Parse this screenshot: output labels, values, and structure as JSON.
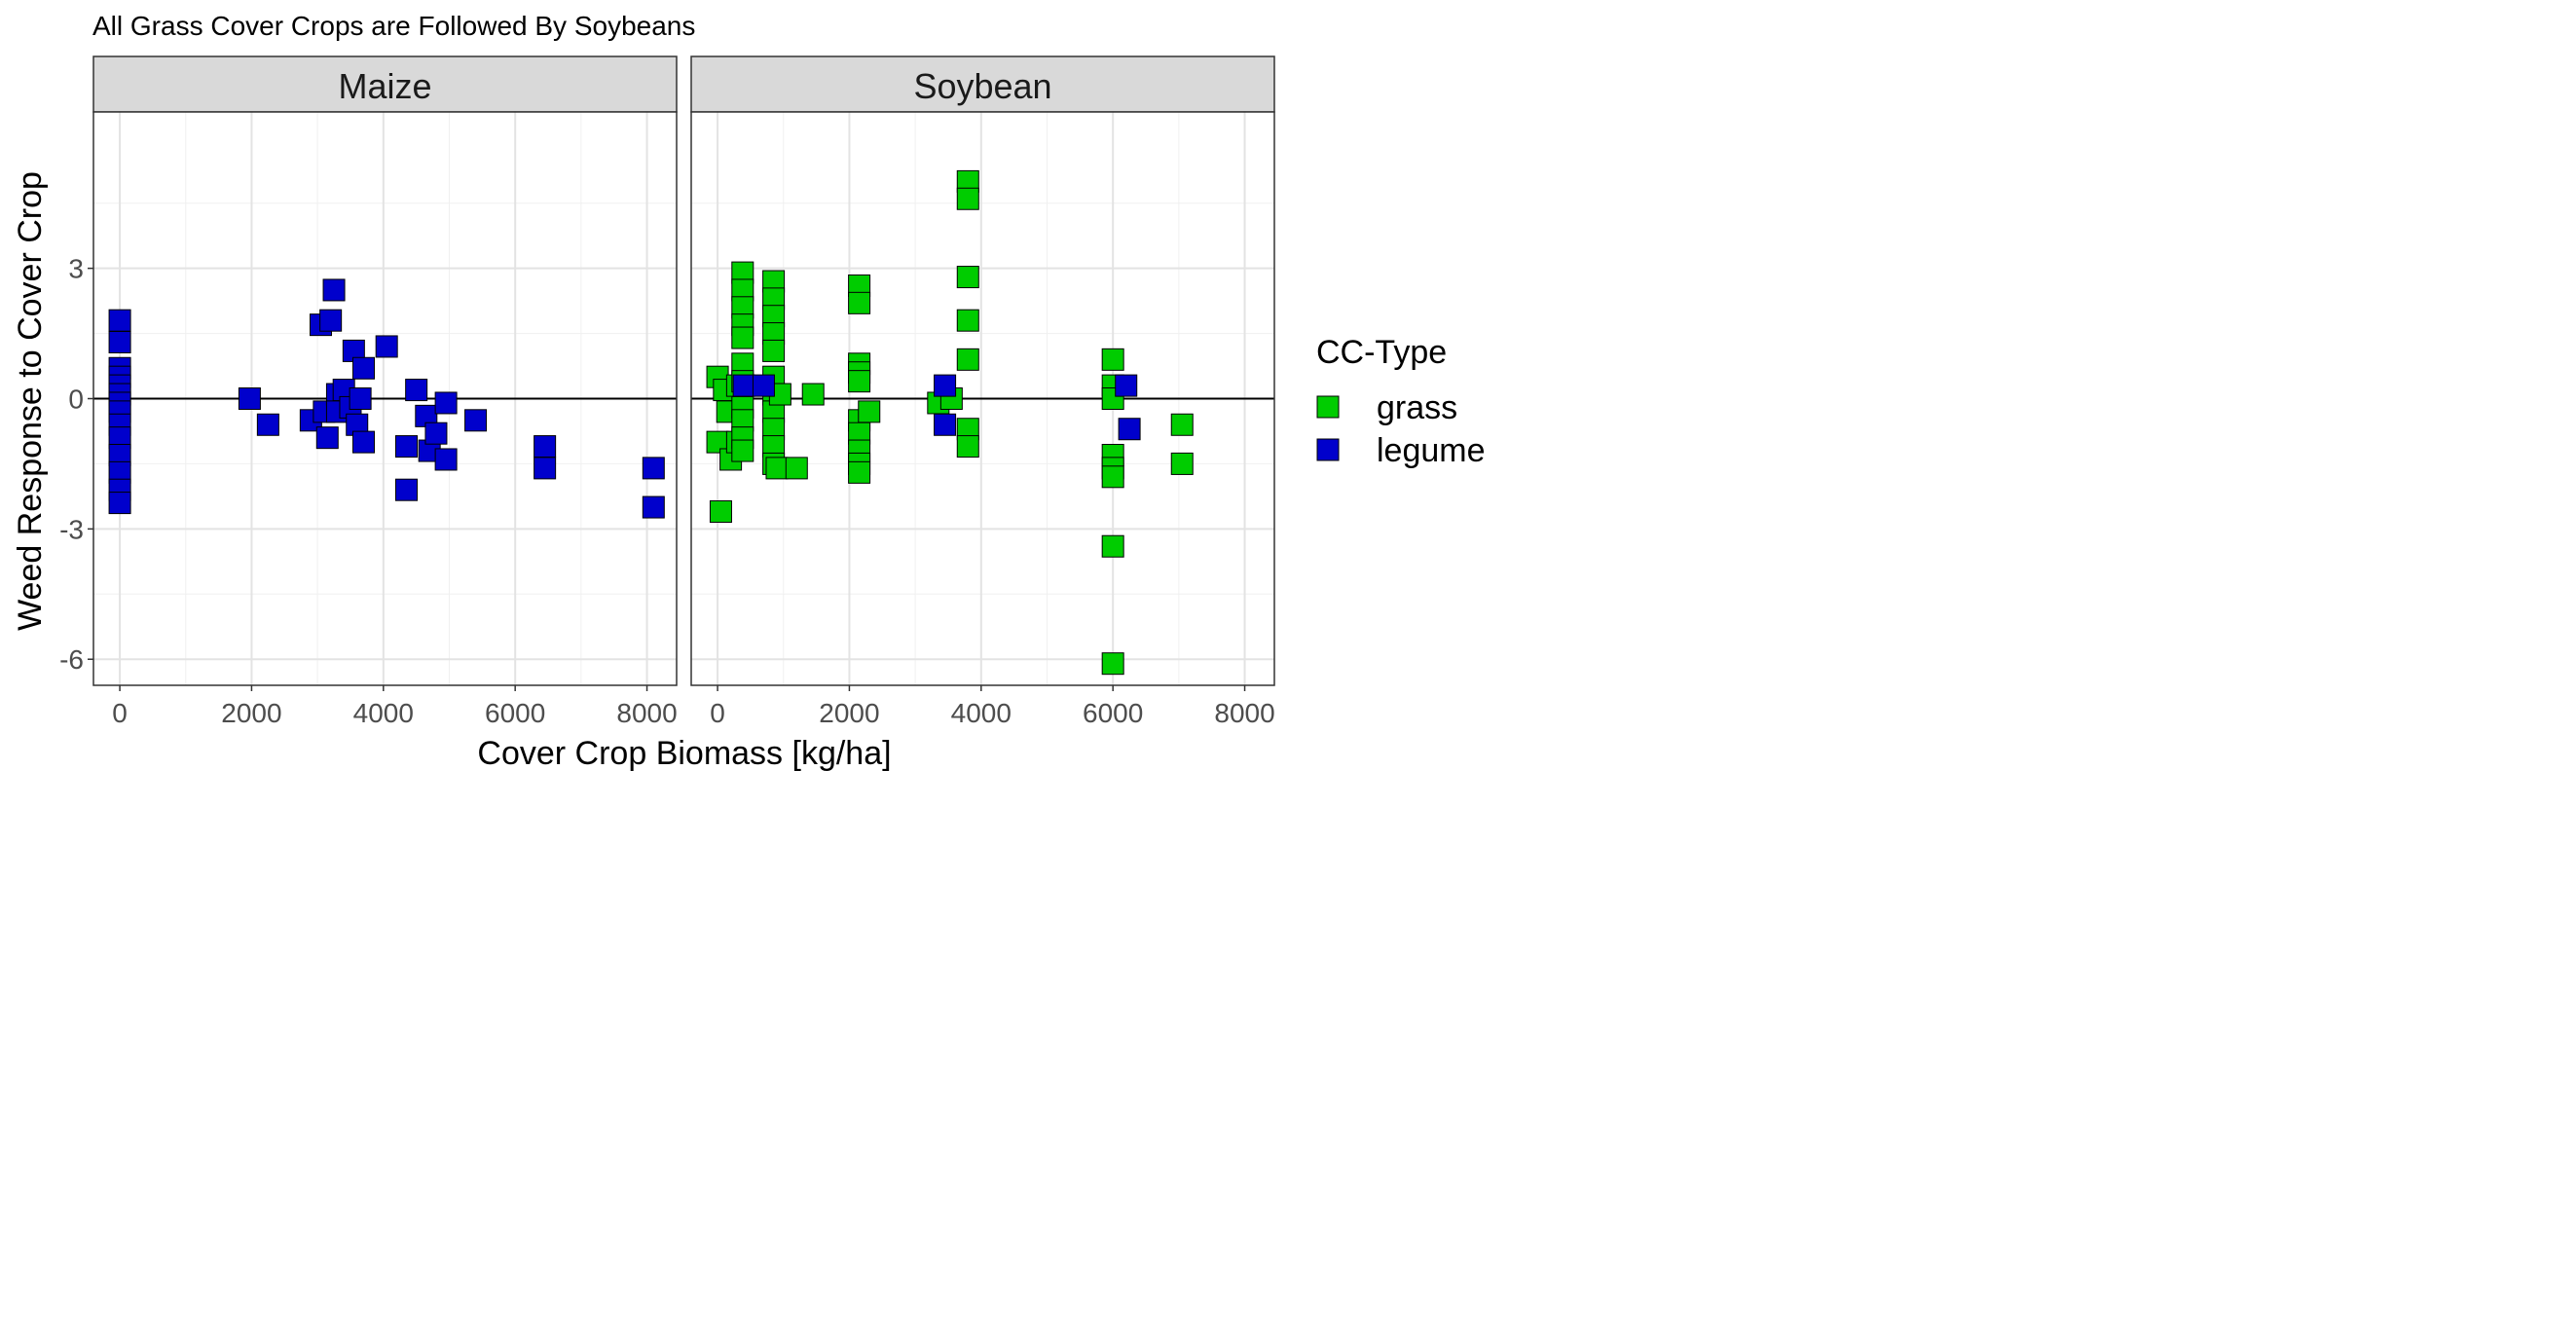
{
  "chart_data": {
    "type": "scatter",
    "title": "All Grass Cover Crops are Followed By Soybeans",
    "xlabel": "Cover Crop Biomass [kg/ha]",
    "ylabel": "Weed Response to Cover Crop",
    "xlim": [
      -400,
      8450
    ],
    "ylim": [
      -6.6,
      6.6
    ],
    "x_ticks": [
      0,
      2000,
      4000,
      6000,
      8000
    ],
    "y_ticks": [
      -6,
      -3,
      0,
      3
    ],
    "x_tick_labels": [
      "0",
      "2000",
      "4000",
      "6000",
      "8000"
    ],
    "y_tick_labels": [
      "-6",
      "-3",
      "0",
      "3"
    ],
    "grid": true,
    "reference_line_y": 0,
    "legend": {
      "title": "CC-Type",
      "position": "right",
      "items": [
        {
          "label": "grass",
          "color": "#00cc00"
        },
        {
          "label": "legume",
          "color": "#0000cc"
        }
      ]
    },
    "panels": [
      {
        "name": "Maize",
        "series": [
          {
            "name": "legume",
            "color": "#0000cc",
            "points": [
              [
                0,
                1.8
              ],
              [
                0,
                1.3
              ],
              [
                0,
                0.7
              ],
              [
                0,
                0.5
              ],
              [
                0,
                0.3
              ],
              [
                0,
                0.1
              ],
              [
                0,
                -0.1
              ],
              [
                0,
                -0.3
              ],
              [
                0,
                -0.6
              ],
              [
                0,
                -0.9
              ],
              [
                0,
                -1.3
              ],
              [
                0,
                -1.7
              ],
              [
                0,
                -2.1
              ],
              [
                0,
                -2.4
              ],
              [
                1970,
                0.0
              ],
              [
                2250,
                -0.6
              ],
              [
                2900,
                -0.5
              ],
              [
                3050,
                1.7
              ],
              [
                3100,
                -0.3
              ],
              [
                3150,
                -0.9
              ],
              [
                3200,
                1.8
              ],
              [
                3250,
                2.5
              ],
              [
                3300,
                0.1
              ],
              [
                3300,
                -0.3
              ],
              [
                3400,
                0.2
              ],
              [
                3500,
                -0.2
              ],
              [
                3550,
                1.1
              ],
              [
                3600,
                -0.6
              ],
              [
                3650,
                0.0
              ],
              [
                3700,
                0.7
              ],
              [
                3700,
                -1.0
              ],
              [
                4050,
                1.2
              ],
              [
                4350,
                -1.1
              ],
              [
                4350,
                -2.1
              ],
              [
                4500,
                0.2
              ],
              [
                4650,
                -0.4
              ],
              [
                4700,
                -1.2
              ],
              [
                4800,
                -0.8
              ],
              [
                4950,
                -1.4
              ],
              [
                4950,
                -0.1
              ],
              [
                5400,
                -0.5
              ],
              [
                6450,
                -1.1
              ],
              [
                6450,
                -1.6
              ],
              [
                8100,
                -1.6
              ],
              [
                8100,
                -2.5
              ]
            ]
          }
        ]
      },
      {
        "name": "Soybean",
        "series": [
          {
            "name": "grass",
            "color": "#00cc00",
            "points": [
              [
                0,
                0.5
              ],
              [
                0,
                -1.0
              ],
              [
                50,
                -2.6
              ],
              [
                100,
                0.2
              ],
              [
                150,
                -0.3
              ],
              [
                200,
                -1.4
              ],
              [
                300,
                -1.0
              ],
              [
                300,
                0.3
              ],
              [
                380,
                2.9
              ],
              [
                380,
                2.5
              ],
              [
                380,
                2.1
              ],
              [
                380,
                1.7
              ],
              [
                380,
                1.4
              ],
              [
                380,
                0.8
              ],
              [
                380,
                0.4
              ],
              [
                380,
                -0.2
              ],
              [
                380,
                -0.5
              ],
              [
                380,
                -0.9
              ],
              [
                380,
                -1.2
              ],
              [
                850,
                2.7
              ],
              [
                850,
                2.3
              ],
              [
                850,
                1.9
              ],
              [
                850,
                1.5
              ],
              [
                850,
                1.1
              ],
              [
                850,
                0.5
              ],
              [
                850,
                0.1
              ],
              [
                850,
                -0.3
              ],
              [
                850,
                -0.7
              ],
              [
                850,
                -1.1
              ],
              [
                850,
                -1.5
              ],
              [
                900,
                -1.6
              ],
              [
                950,
                0.1
              ],
              [
                1200,
                -1.6
              ],
              [
                1450,
                0.1
              ],
              [
                2150,
                2.6
              ],
              [
                2150,
                2.2
              ],
              [
                2150,
                0.8
              ],
              [
                2150,
                0.6
              ],
              [
                2150,
                0.4
              ],
              [
                2150,
                -0.5
              ],
              [
                2150,
                -0.8
              ],
              [
                2150,
                -1.2
              ],
              [
                2150,
                -1.5
              ],
              [
                2150,
                -1.7
              ],
              [
                2300,
                -0.3
              ],
              [
                3350,
                -0.1
              ],
              [
                3550,
                0.0
              ],
              [
                3800,
                5.0
              ],
              [
                3800,
                4.6
              ],
              [
                3800,
                2.8
              ],
              [
                3800,
                1.8
              ],
              [
                3800,
                0.9
              ],
              [
                3800,
                -0.7
              ],
              [
                3800,
                -1.1
              ],
              [
                6000,
                0.9
              ],
              [
                6000,
                0.3
              ],
              [
                6000,
                0.0
              ],
              [
                6000,
                -1.3
              ],
              [
                6000,
                -1.6
              ],
              [
                6000,
                -1.8
              ],
              [
                6000,
                -3.4
              ],
              [
                6000,
                -6.1
              ],
              [
                7050,
                -0.6
              ],
              [
                7050,
                -1.5
              ]
            ]
          },
          {
            "name": "legume",
            "color": "#0000cc",
            "points": [
              [
                400,
                0.3
              ],
              [
                700,
                0.3
              ],
              [
                3450,
                0.3
              ],
              [
                3450,
                -0.6
              ],
              [
                6200,
                0.3
              ],
              [
                6250,
                -0.7
              ]
            ]
          }
        ]
      }
    ]
  }
}
